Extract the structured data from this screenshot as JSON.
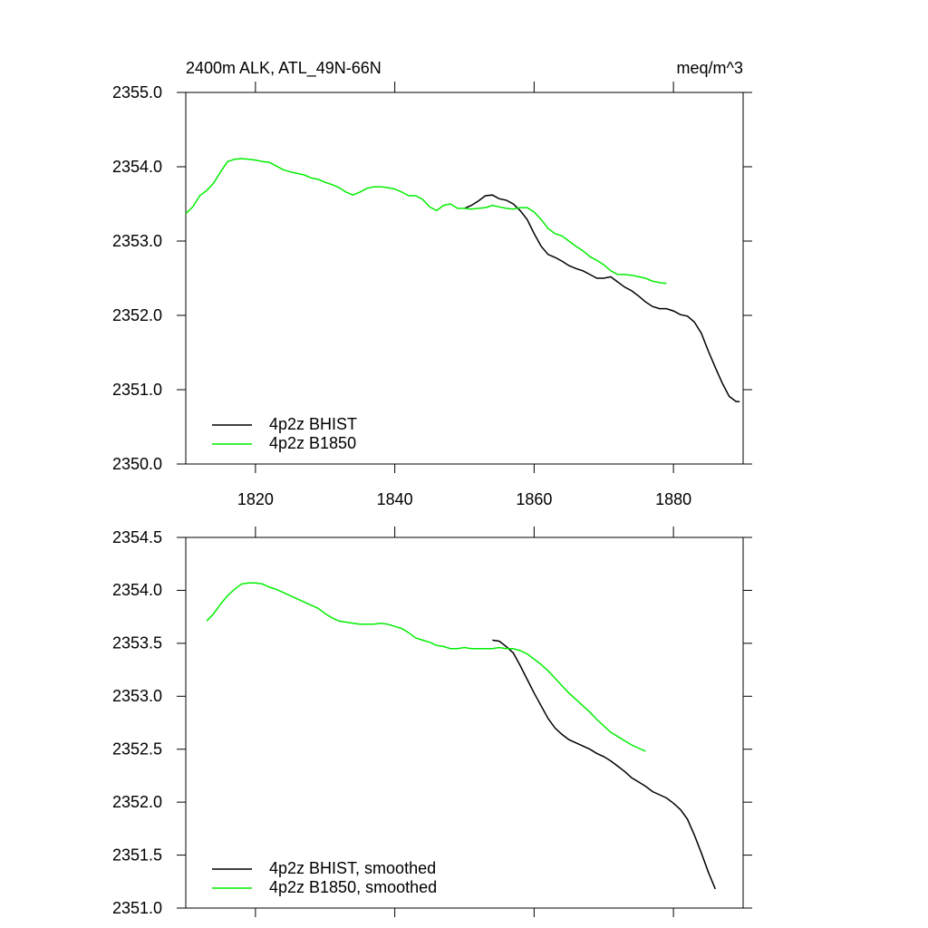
{
  "chart_data": [
    {
      "type": "line",
      "title": "2400m ALK, ATL_49N-66N",
      "units": "meq/m^3",
      "xlim": [
        1810,
        1890
      ],
      "xticks": [
        1820,
        1840,
        1860,
        1880
      ],
      "ylim": [
        2350,
        2355
      ],
      "yticks": [
        {
          "value": 2350,
          "label": "2350.0"
        },
        {
          "value": 2351,
          "label": "2351.0"
        },
        {
          "value": 2352,
          "label": "2352.0"
        },
        {
          "value": 2353,
          "label": "2353.0"
        },
        {
          "value": 2354,
          "label": "2354.0"
        },
        {
          "value": 2355,
          "label": "2355.0"
        }
      ],
      "legend": "lower left",
      "series": [
        {
          "name": "4p2z BHIST",
          "color": "#000000",
          "x": [
            1850,
            1851,
            1852,
            1853,
            1854,
            1855,
            1856,
            1857,
            1858,
            1859,
            1860,
            1861,
            1862,
            1863,
            1864,
            1865,
            1866,
            1867,
            1868,
            1869,
            1870,
            1871,
            1872,
            1873,
            1874,
            1875,
            1876,
            1877,
            1878,
            1879,
            1880,
            1881,
            1882,
            1883,
            1884,
            1885,
            1886,
            1887,
            1888,
            1889,
            1889.5
          ],
          "values": [
            2353.44,
            2353.48,
            2353.54,
            2353.61,
            2353.62,
            2353.57,
            2353.55,
            2353.5,
            2353.41,
            2353.29,
            2353.1,
            2352.93,
            2352.82,
            2352.78,
            2352.73,
            2352.67,
            2352.63,
            2352.6,
            2352.55,
            2352.5,
            2352.5,
            2352.52,
            2352.45,
            2352.38,
            2352.33,
            2352.26,
            2352.18,
            2352.12,
            2352.09,
            2352.09,
            2352.06,
            2352.01,
            2351.99,
            2351.91,
            2351.76,
            2351.52,
            2351.3,
            2351.09,
            2350.91,
            2350.84,
            2350.84
          ]
        },
        {
          "name": "4p2z B1850",
          "color": "#00ee00",
          "x": [
            1810,
            1811,
            1812,
            1813,
            1814,
            1815,
            1816,
            1817,
            1818,
            1819,
            1820,
            1821,
            1822,
            1823,
            1824,
            1825,
            1826,
            1827,
            1828,
            1829,
            1830,
            1831,
            1832,
            1833,
            1834,
            1835,
            1836,
            1837,
            1838,
            1839,
            1840,
            1841,
            1842,
            1843,
            1844,
            1845,
            1846,
            1847,
            1848,
            1849,
            1850,
            1851,
            1852,
            1853,
            1854,
            1855,
            1856,
            1857,
            1858,
            1859,
            1860,
            1861,
            1862,
            1863,
            1864,
            1865,
            1866,
            1867,
            1868,
            1869,
            1870,
            1871,
            1872,
            1873,
            1874,
            1875,
            1876,
            1877,
            1878,
            1879
          ],
          "values": [
            2353.37,
            2353.46,
            2353.61,
            2353.68,
            2353.78,
            2353.93,
            2354.07,
            2354.1,
            2354.11,
            2354.1,
            2354.09,
            2354.07,
            2354.06,
            2354.01,
            2353.96,
            2353.93,
            2353.91,
            2353.89,
            2353.85,
            2353.83,
            2353.79,
            2353.76,
            2353.72,
            2353.66,
            2353.62,
            2353.66,
            2353.71,
            2353.73,
            2353.73,
            2353.72,
            2353.7,
            2353.66,
            2353.61,
            2353.61,
            2353.56,
            2353.46,
            2353.41,
            2353.48,
            2353.5,
            2353.44,
            2353.44,
            2353.43,
            2353.44,
            2353.45,
            2353.48,
            2353.46,
            2353.44,
            2353.43,
            2353.45,
            2353.45,
            2353.39,
            2353.29,
            2353.17,
            2353.1,
            2353.07,
            2353.0,
            2352.93,
            2352.87,
            2352.79,
            2352.74,
            2352.68,
            2352.6,
            2352.55,
            2352.55,
            2352.54,
            2352.52,
            2352.5,
            2352.46,
            2352.44,
            2352.43
          ]
        }
      ]
    },
    {
      "type": "line",
      "xlim": [
        1810,
        1890
      ],
      "xticks": [
        1820,
        1840,
        1860,
        1880
      ],
      "ylim": [
        2351,
        2354.5
      ],
      "yticks": [
        {
          "value": 2351,
          "label": "2351.0"
        },
        {
          "value": 2351.5,
          "label": "2351.5"
        },
        {
          "value": 2352,
          "label": "2352.0"
        },
        {
          "value": 2352.5,
          "label": "2352.5"
        },
        {
          "value": 2353,
          "label": "2353.0"
        },
        {
          "value": 2353.5,
          "label": "2353.5"
        },
        {
          "value": 2354,
          "label": "2354.0"
        },
        {
          "value": 2354.5,
          "label": "2354.5"
        }
      ],
      "legend": "lower left",
      "series": [
        {
          "name": "4p2z BHIST, smoothed",
          "color": "#000000",
          "x": [
            1854,
            1855,
            1856,
            1857,
            1858,
            1859,
            1860,
            1861,
            1862,
            1863,
            1864,
            1865,
            1866,
            1867,
            1868,
            1869,
            1870,
            1871,
            1872,
            1873,
            1874,
            1875,
            1876,
            1877,
            1878,
            1879,
            1880,
            1881,
            1882,
            1883,
            1884,
            1885,
            1886
          ],
          "values": [
            2353.53,
            2353.52,
            2353.47,
            2353.41,
            2353.29,
            2353.16,
            2353.03,
            2352.91,
            2352.79,
            2352.7,
            2352.64,
            2352.59,
            2352.56,
            2352.53,
            2352.5,
            2352.46,
            2352.43,
            2352.39,
            2352.34,
            2352.29,
            2352.23,
            2352.19,
            2352.15,
            2352.1,
            2352.07,
            2352.04,
            2351.99,
            2351.93,
            2351.84,
            2351.69,
            2351.52,
            2351.34,
            2351.18
          ]
        },
        {
          "name": "4p2z B1850, smoothed",
          "color": "#00ee00",
          "x": [
            1813,
            1814,
            1815,
            1816,
            1817,
            1818,
            1819,
            1820,
            1821,
            1822,
            1823,
            1824,
            1825,
            1826,
            1827,
            1828,
            1829,
            1830,
            1831,
            1832,
            1833,
            1834,
            1835,
            1836,
            1837,
            1838,
            1839,
            1840,
            1841,
            1842,
            1843,
            1844,
            1845,
            1846,
            1847,
            1848,
            1849,
            1850,
            1851,
            1852,
            1853,
            1854,
            1855,
            1856,
            1857,
            1858,
            1859,
            1860,
            1861,
            1862,
            1863,
            1864,
            1865,
            1866,
            1867,
            1868,
            1869,
            1870,
            1871,
            1872,
            1873,
            1874,
            1875,
            1876
          ],
          "values": [
            2353.71,
            2353.78,
            2353.87,
            2353.95,
            2354.01,
            2354.06,
            2354.07,
            2354.07,
            2354.06,
            2354.03,
            2354.01,
            2353.98,
            2353.95,
            2353.92,
            2353.89,
            2353.86,
            2353.83,
            2353.78,
            2353.74,
            2353.71,
            2353.7,
            2353.69,
            2353.68,
            2353.68,
            2353.68,
            2353.69,
            2353.68,
            2353.66,
            2353.64,
            2353.6,
            2353.55,
            2353.53,
            2353.51,
            2353.48,
            2353.47,
            2353.45,
            2353.45,
            2353.46,
            2353.45,
            2353.45,
            2353.45,
            2353.45,
            2353.46,
            2353.45,
            2353.45,
            2353.43,
            2353.4,
            2353.35,
            2353.3,
            2353.24,
            2353.17,
            2353.1,
            2353.03,
            2352.97,
            2352.91,
            2352.85,
            2352.78,
            2352.72,
            2352.66,
            2352.62,
            2352.58,
            2352.54,
            2352.51,
            2352.48
          ]
        }
      ]
    }
  ]
}
